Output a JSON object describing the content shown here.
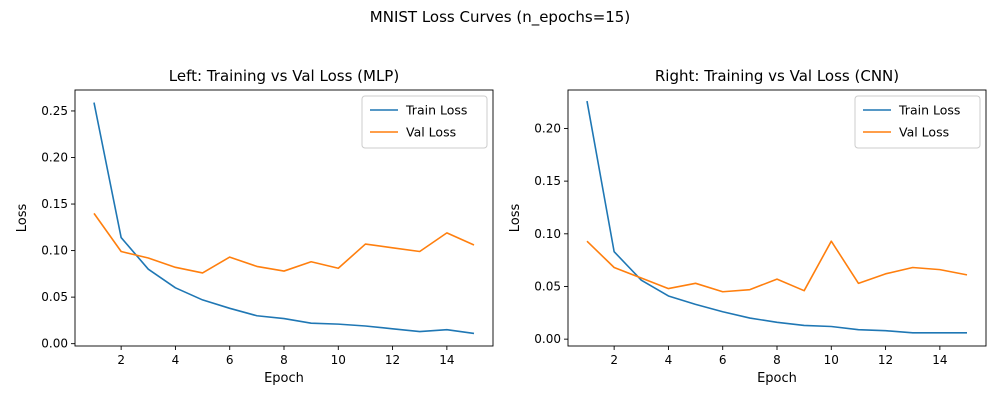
{
  "suptitle": "MNIST Loss Curves (n_epochs=15)",
  "colors": {
    "train": "#1f77b4",
    "val": "#ff7f0e"
  },
  "chart_data": [
    {
      "type": "line",
      "title": "Left: Training vs Val Loss (MLP)",
      "xlabel": "Epoch",
      "ylabel": "Loss",
      "xlim": [
        0.3,
        15.7
      ],
      "ylim": [
        -0.0025,
        0.2725
      ],
      "xticks": [
        2,
        4,
        6,
        8,
        10,
        12,
        14
      ],
      "xtick_labels": [
        "2",
        "4",
        "6",
        "8",
        "10",
        "12",
        "14"
      ],
      "yticks": [
        0.0,
        0.05,
        0.1,
        0.15,
        0.2,
        0.25
      ],
      "ytick_labels": [
        "0.00",
        "0.05",
        "0.10",
        "0.15",
        "0.20",
        "0.25"
      ],
      "legend": "top-right",
      "grid": false,
      "x": [
        1,
        2,
        3,
        4,
        5,
        6,
        7,
        8,
        9,
        10,
        11,
        12,
        13,
        14,
        15
      ],
      "series": [
        {
          "name": "Train Loss",
          "values": [
            0.259,
            0.114,
            0.08,
            0.06,
            0.047,
            0.038,
            0.03,
            0.027,
            0.022,
            0.021,
            0.019,
            0.016,
            0.013,
            0.015,
            0.011
          ]
        },
        {
          "name": "Val Loss",
          "values": [
            0.14,
            0.099,
            0.092,
            0.082,
            0.076,
            0.093,
            0.083,
            0.078,
            0.088,
            0.081,
            0.107,
            0.103,
            0.099,
            0.119,
            0.106
          ]
        }
      ]
    },
    {
      "type": "line",
      "title": "Right: Training vs Val Loss (CNN)",
      "xlabel": "Epoch",
      "ylabel": "Loss",
      "xlim": [
        0.3,
        15.7
      ],
      "ylim": [
        -0.0065,
        0.2365
      ],
      "xticks": [
        2,
        4,
        6,
        8,
        10,
        12,
        14
      ],
      "xtick_labels": [
        "2",
        "4",
        "6",
        "8",
        "10",
        "12",
        "14"
      ],
      "yticks": [
        0.0,
        0.05,
        0.1,
        0.15,
        0.2
      ],
      "ytick_labels": [
        "0.00",
        "0.05",
        "0.10",
        "0.15",
        "0.20"
      ],
      "legend": "top-right",
      "grid": false,
      "x": [
        1,
        2,
        3,
        4,
        5,
        6,
        7,
        8,
        9,
        10,
        11,
        12,
        13,
        14,
        15
      ],
      "series": [
        {
          "name": "Train Loss",
          "values": [
            0.226,
            0.083,
            0.056,
            0.041,
            0.033,
            0.026,
            0.02,
            0.016,
            0.013,
            0.012,
            0.009,
            0.008,
            0.006,
            0.006,
            0.006
          ]
        },
        {
          "name": "Val Loss",
          "values": [
            0.093,
            0.068,
            0.058,
            0.048,
            0.053,
            0.045,
            0.047,
            0.057,
            0.046,
            0.093,
            0.053,
            0.062,
            0.068,
            0.066,
            0.061
          ]
        }
      ]
    }
  ]
}
